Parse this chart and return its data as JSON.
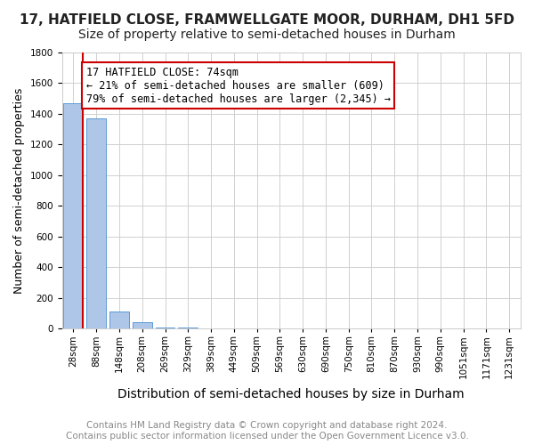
{
  "title": "17, HATFIELD CLOSE, FRAMWELLGATE MOOR, DURHAM, DH1 5FD",
  "subtitle": "Size of property relative to semi-detached houses in Durham",
  "xlabel": "Distribution of semi-detached houses by size in Durham",
  "ylabel": "Number of semi-detached properties",
  "bins": [
    "28sqm",
    "88sqm",
    "148sqm",
    "208sqm",
    "269sqm",
    "329sqm",
    "389sqm",
    "449sqm",
    "509sqm",
    "569sqm",
    "630sqm",
    "690sqm",
    "750sqm",
    "810sqm",
    "870sqm",
    "930sqm",
    "990sqm",
    "1051sqm",
    "1171sqm",
    "1231sqm"
  ],
  "values": [
    1470,
    1370,
    110,
    40,
    8,
    5,
    4,
    3,
    2,
    2,
    1,
    1,
    1,
    1,
    1,
    0,
    0,
    0,
    0,
    0
  ],
  "property_line_x": 0.42,
  "bar_color": "#aec6e8",
  "bar_edge_color": "#5b9bd5",
  "property_line_color": "#cc0000",
  "annotation_text": "17 HATFIELD CLOSE: 74sqm\n← 21% of semi-detached houses are smaller (609)\n79% of semi-detached houses are larger (2,345) →",
  "annotation_box_color": "#ffffff",
  "annotation_box_edge": "#cc0000",
  "ylim": [
    0,
    1800
  ],
  "footnote": "Contains HM Land Registry data © Crown copyright and database right 2024.\nContains public sector information licensed under the Open Government Licence v3.0.",
  "title_fontsize": 11,
  "subtitle_fontsize": 10,
  "xlabel_fontsize": 10,
  "ylabel_fontsize": 9,
  "tick_fontsize": 7.5,
  "annotation_fontsize": 8.5,
  "footnote_fontsize": 7.5,
  "background_color": "#ffffff",
  "grid_color": "#d0d0d0"
}
